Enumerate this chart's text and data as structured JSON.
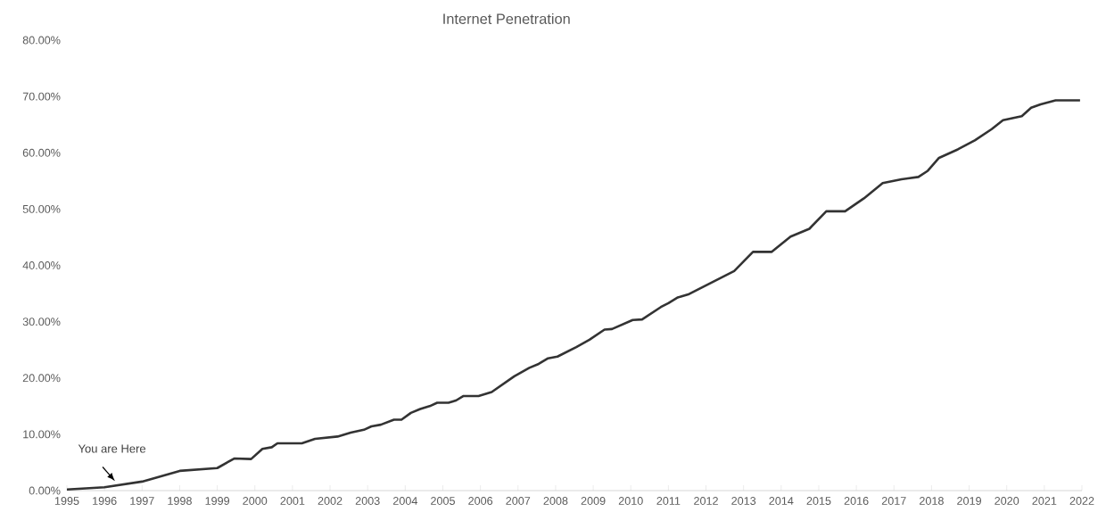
{
  "chart_data": {
    "type": "line",
    "title": "Internet Penetration",
    "x": [
      1995.0,
      1996.0,
      1997.0,
      1998.0,
      1999.0,
      1999.45,
      1999.9,
      2000.2,
      2000.45,
      2000.6,
      2001.25,
      2001.6,
      2002.2,
      2002.55,
      2002.9,
      2003.1,
      2003.35,
      2003.7,
      2003.9,
      2004.15,
      2004.4,
      2004.65,
      2004.85,
      2005.15,
      2005.35,
      2005.55,
      2005.95,
      2006.3,
      2006.9,
      2007.3,
      2007.55,
      2007.8,
      2008.05,
      2008.55,
      2008.9,
      2009.3,
      2009.5,
      2010.05,
      2010.3,
      2010.8,
      2011.0,
      2011.25,
      2011.55,
      2012.75,
      2013.25,
      2013.75,
      2014.25,
      2014.75,
      2015.2,
      2015.7,
      2016.2,
      2016.7,
      2017.2,
      2017.65,
      2017.9,
      2018.2,
      2018.7,
      2019.15,
      2019.6,
      2019.9,
      2020.4,
      2020.65,
      2020.9,
      2021.3,
      2021.95
    ],
    "series": [
      {
        "color": "#333333",
        "values": [
          0.2,
          0.6,
          1.6,
          3.5,
          4.0,
          5.7,
          5.6,
          7.4,
          7.7,
          8.4,
          8.4,
          9.2,
          9.6,
          10.3,
          10.8,
          11.4,
          11.7,
          12.6,
          12.6,
          13.8,
          14.5,
          15.0,
          15.6,
          15.6,
          16.0,
          16.8,
          16.8,
          17.5,
          20.3,
          21.8,
          22.5,
          23.5,
          23.8,
          25.5,
          26.8,
          28.6,
          28.7,
          30.3,
          30.4,
          32.6,
          33.3,
          34.3,
          34.9,
          39.0,
          42.4,
          42.4,
          45.1,
          46.5,
          49.6,
          49.6,
          51.9,
          54.6,
          55.3,
          55.7,
          56.8,
          59.1,
          60.6,
          62.2,
          64.2,
          65.8,
          66.5,
          68.0,
          68.6,
          69.3,
          69.3
        ]
      }
    ],
    "xlim": [
      1995,
      2022
    ],
    "xticks": [
      1995,
      1996,
      1997,
      1998,
      1999,
      2000,
      2001,
      2002,
      2003,
      2004,
      2005,
      2006,
      2007,
      2008,
      2009,
      2010,
      2011,
      2012,
      2013,
      2014,
      2015,
      2016,
      2017,
      2018,
      2019,
      2020,
      2021,
      2022
    ],
    "ylim": [
      0,
      80
    ],
    "yticks": [
      {
        "value": 0,
        "label": "0.00%"
      },
      {
        "value": 10,
        "label": "10.00%"
      },
      {
        "value": 20,
        "label": "20.00%"
      },
      {
        "value": 30,
        "label": "30.00%"
      },
      {
        "value": 40,
        "label": "40.00%"
      },
      {
        "value": 50,
        "label": "50.00%"
      },
      {
        "value": 60,
        "label": "60.00%"
      },
      {
        "value": 70,
        "label": "70.00%"
      },
      {
        "value": 80,
        "label": "80.00%"
      }
    ],
    "annotations": [
      {
        "text": "You are Here",
        "x": 1996.4,
        "y": 1.0
      }
    ],
    "grid": false,
    "marker": "none",
    "line_style": "solid"
  }
}
